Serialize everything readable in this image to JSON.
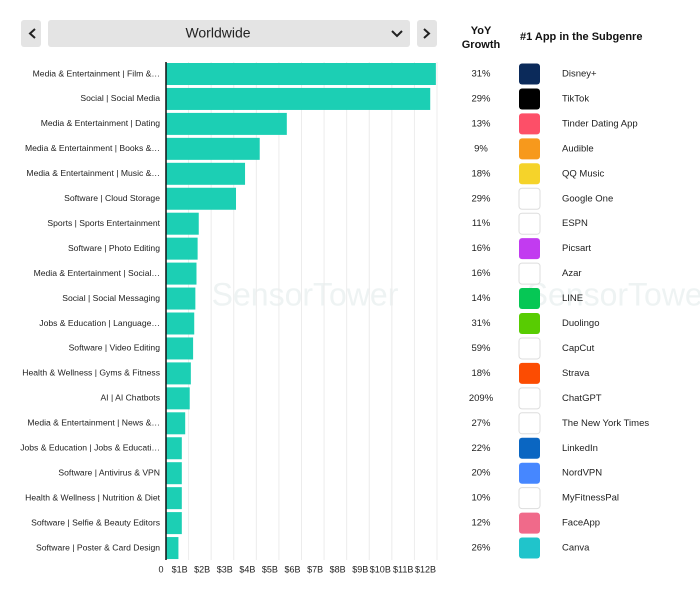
{
  "header": {
    "region": "Worldwide",
    "growth_heading": "YoY Growth",
    "app_heading": "#1 App in the Subgenre"
  },
  "watermark": "SensorTower",
  "chart_data": {
    "type": "bar",
    "orientation": "horizontal",
    "color": "#1ccfb4",
    "categories": [
      "Media & Entertainment | Film &…",
      "Social | Social Media",
      "Media & Entertainment | Dating",
      "Media & Entertainment | Books &…",
      "Media & Entertainment | Music &…",
      "Software | Cloud Storage",
      "Sports | Sports Entertainment",
      "Software | Photo Editing",
      "Media & Entertainment | Social…",
      "Social | Social Messaging",
      "Jobs & Education | Language…",
      "Software | Video Editing",
      "Health & Wellness | Gyms & Fitness",
      "AI | AI Chatbots",
      "Media & Entertainment | News &…",
      "Jobs & Education | Jobs & Educati…",
      "Software | Antivirus & VPN",
      "Health & Wellness | Nutrition & Diet",
      "Software | Selfie & Beauty Editors",
      "Software | Poster & Card Design"
    ],
    "values": [
      11.95,
      11.7,
      5.35,
      4.15,
      3.5,
      3.1,
      1.45,
      1.4,
      1.35,
      1.3,
      1.25,
      1.2,
      1.1,
      1.05,
      0.85,
      0.7,
      0.7,
      0.7,
      0.7,
      0.55
    ],
    "xlim": [
      0,
      12
    ],
    "xticks": [
      0,
      {
        "value": 1,
        "label": "$1B"
      },
      {
        "value": 2,
        "label": "$2B"
      },
      {
        "value": 3,
        "label": "$3B"
      },
      {
        "value": 4,
        "label": "$4B"
      },
      {
        "value": 5,
        "label": "$5B"
      },
      {
        "value": 6,
        "label": "$6B"
      },
      {
        "value": 7,
        "label": "$7B"
      },
      {
        "value": 8,
        "label": "$8B"
      },
      {
        "value": 9,
        "label": "$9B"
      },
      {
        "value": 10,
        "label": "$10B"
      },
      {
        "value": 11,
        "label": "$11B"
      },
      {
        "value": 12,
        "label": "$12B"
      }
    ],
    "grid": true,
    "yoy_growth": {
      "values": [
        31,
        29,
        13,
        9,
        18,
        29,
        11,
        16,
        16,
        14,
        31,
        59,
        18,
        209,
        27,
        22,
        20,
        10,
        12,
        26
      ],
      "value_labels": [
        "31%",
        "29%",
        "13%",
        "9%",
        "18%",
        "29%",
        "11%",
        "16%",
        "16%",
        "14%",
        "31%",
        "59%",
        "18%",
        "209%",
        "27%",
        "22%",
        "20%",
        "10%",
        "12%",
        "26%"
      ]
    },
    "top_apps": [
      "Disney+",
      "TikTok",
      "Tinder Dating App",
      "Audible",
      "QQ Music",
      "Google One",
      "ESPN",
      "Picsart",
      "Azar",
      "LINE",
      "Duolingo",
      "CapCut",
      "Strava",
      "ChatGPT",
      "The New York Times",
      "LinkedIn",
      "NordVPN",
      "MyFitnessPal",
      "FaceApp",
      "Canva"
    ]
  }
}
